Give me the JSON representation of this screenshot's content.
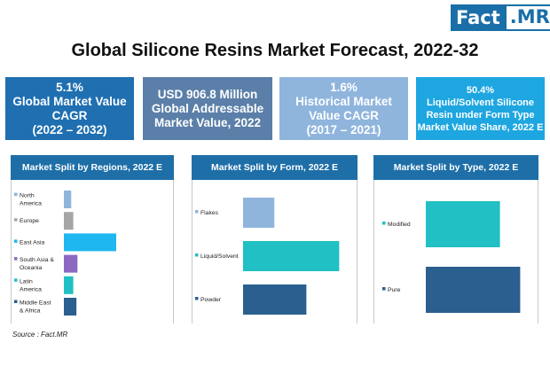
{
  "brand": {
    "part1": "Fact",
    "part2": ".MR"
  },
  "title": "Global Silicone Resins Market Forecast, 2022-32",
  "kpis": [
    {
      "line1": "5.1%",
      "line2": "Global Market Value",
      "line3": "CAGR",
      "line4": "(2022 – 2032)"
    },
    {
      "line1": "USD 906.8 Million",
      "line2": "Global Addressable",
      "line3": "Market Value, 2022"
    },
    {
      "line1": "1.6%",
      "line2": "Historical Market",
      "line3": "Value CAGR",
      "line4": "(2017 – 2021)"
    },
    {
      "line1": "50.4%",
      "line2": "Liquid/Solvent Silicone",
      "line3": "Resin under Form Type",
      "line4": "Market Value Share, 2022 E"
    }
  ],
  "source": "Source : Fact.MR",
  "chart_data": [
    {
      "type": "bar",
      "orientation": "horizontal",
      "title": "Market Split by Regions, 2022 E",
      "categories": [
        {
          "label": [
            "North",
            "America"
          ],
          "color": "#8fb5dd"
        },
        {
          "label": [
            "Europe"
          ],
          "color": "#a6a6a6"
        },
        {
          "label": [
            "East Asia"
          ],
          "color": "#1fb7ef"
        },
        {
          "label": [
            "South Asia &",
            "Oceania"
          ],
          "color": "#8c68c2"
        },
        {
          "label": [
            "Latin",
            "America"
          ],
          "color": "#20c0c4"
        },
        {
          "label": [
            "Middle East",
            "& Africa"
          ],
          "color": "#2a5f8f"
        }
      ],
      "values": [
        7,
        9,
        50,
        13,
        9,
        12
      ],
      "xlim": [
        0,
        100
      ]
    },
    {
      "type": "bar",
      "orientation": "horizontal",
      "title": "Market Split by Form, 2022 E",
      "categories": [
        {
          "label": [
            "Flakes"
          ],
          "color": "#8fb5dd"
        },
        {
          "label": [
            "Liquid/Solvent"
          ],
          "color": "#20c0c4"
        },
        {
          "label": [
            "Powder"
          ],
          "color": "#2a5f8f"
        }
      ],
      "values": [
        16.4,
        50.4,
        33.2
      ],
      "xlim": [
        0,
        100
      ]
    },
    {
      "type": "bar",
      "orientation": "horizontal",
      "title": "Market Split by Type, 2022 E",
      "categories": [
        {
          "label": [
            "Modified"
          ],
          "color": "#20c0c4"
        },
        {
          "label": [
            "Pure"
          ],
          "color": "#2a5f8f"
        }
      ],
      "values": [
        44,
        56
      ],
      "xlim": [
        0,
        100
      ]
    }
  ]
}
